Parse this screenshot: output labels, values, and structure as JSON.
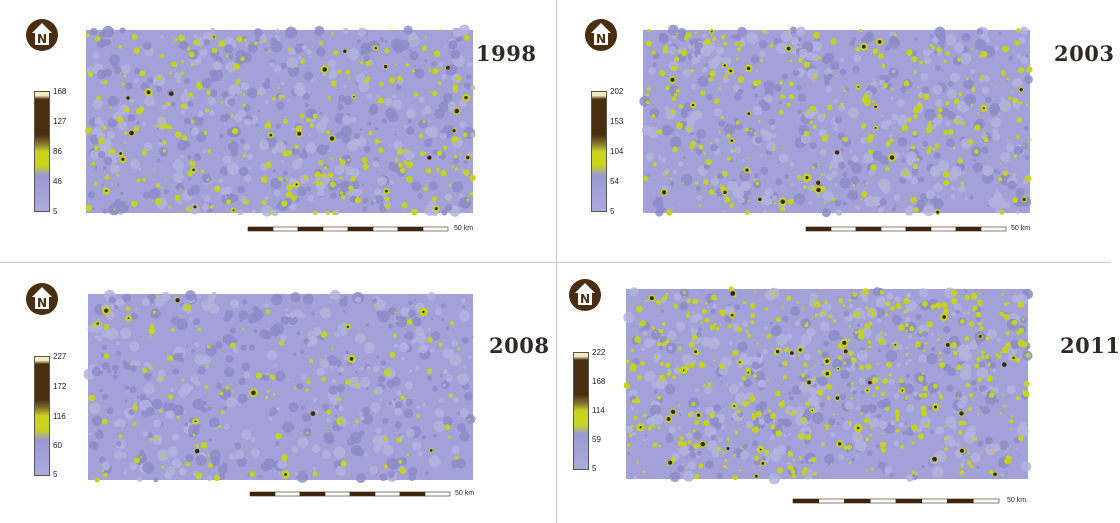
{
  "legend_colors": {
    "low": "#aaaadc",
    "low_mid": "#9a9ad2",
    "mid": "#c8d41e",
    "high": "#4a2e10",
    "top": "#f2ecbe"
  },
  "map_colors": {
    "background": "#a2a2d8",
    "light_patch": "#b4b4df",
    "dark_patch": "#8c8cc8",
    "yellow": "#c4d41c",
    "brown": "#3e260e"
  },
  "north_arrow": {
    "icon": "north-arrow-icon",
    "letter": "N",
    "color": "#4a2e10"
  },
  "scale_label": "50 km",
  "panels": [
    {
      "year": "1998",
      "legend_ticks": [
        "168",
        "127",
        "86",
        "46",
        "5"
      ]
    },
    {
      "year": "2003",
      "legend_ticks": [
        "202",
        "153",
        "104",
        "54",
        "5"
      ]
    },
    {
      "year": "2008",
      "legend_ticks": [
        "227",
        "172",
        "116",
        "60",
        "5"
      ]
    },
    {
      "year": "2011",
      "legend_ticks": [
        "222",
        "168",
        "114",
        "59",
        "5"
      ]
    }
  ]
}
